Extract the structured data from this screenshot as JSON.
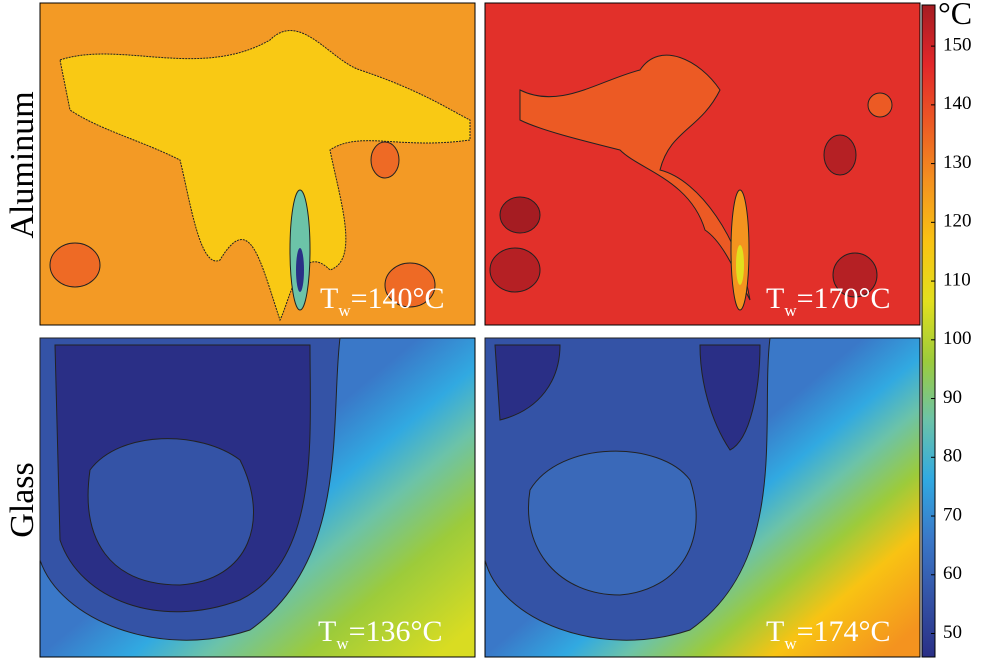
{
  "figure": {
    "rows": [
      "Aluminum",
      "Glass"
    ],
    "panels": [
      {
        "base": "T",
        "sub": "w",
        "rest": "=140°C"
      },
      {
        "base": "T",
        "sub": "w",
        "rest": "=170°C"
      },
      {
        "base": "T",
        "sub": "w",
        "rest": "=136°C"
      },
      {
        "base": "T",
        "sub": "w",
        "rest": "=174°C"
      }
    ],
    "colorbar": {
      "unit": "°C",
      "lim": [
        46,
        157
      ],
      "ticks": [
        50,
        60,
        70,
        80,
        90,
        100,
        110,
        120,
        130,
        140,
        150
      ],
      "colors": [
        "#2a2f86",
        "#3453a6",
        "#3a78c8",
        "#31a9e1",
        "#6cc3a8",
        "#9ccb3b",
        "#e2df1e",
        "#f8c313",
        "#f4931f",
        "#ec5a24",
        "#e2272a",
        "#a51c22"
      ]
    }
  }
}
